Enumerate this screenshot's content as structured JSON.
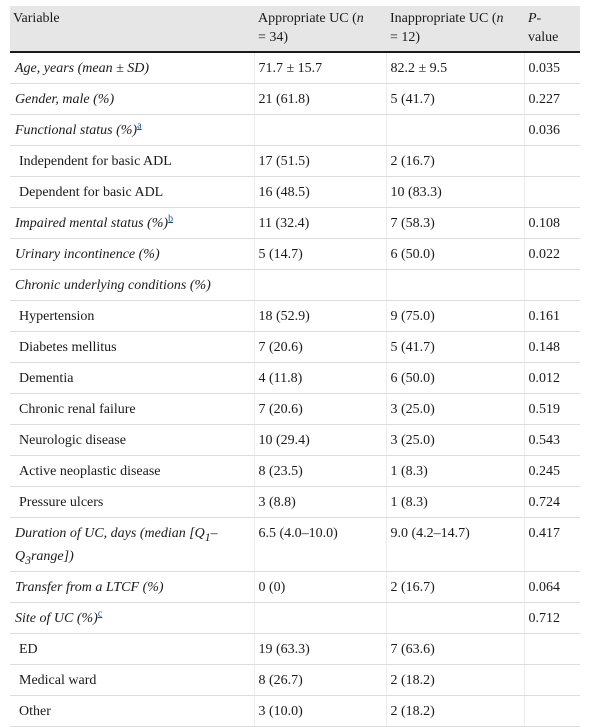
{
  "header": {
    "variable": "Variable",
    "appropriate": "Appropriate UC (",
    "appropriate_n": "n",
    "appropriate_tail": "= 34)",
    "inappropriate": "Inappropriate UC (",
    "inappropriate_n": "n",
    "inappropriate_tail": "= 12)",
    "p_line1": "P-",
    "p_line2": "value"
  },
  "rows": [
    {
      "label": "Age, years (mean ± SD)",
      "italic": true,
      "app": "71.7 ± 15.7",
      "inapp": "82.2 ± 9.5",
      "p": "0.035"
    },
    {
      "label": "Gender, male (%)",
      "italic": true,
      "app": "21 (61.8)",
      "inapp": "5 (41.7)",
      "p": "0.227"
    },
    {
      "label": "Functional status (%)",
      "italic": true,
      "fn": "a",
      "app": "",
      "inapp": "",
      "p": "0.036"
    },
    {
      "label": "Independent for basic ADL",
      "italic": false,
      "sub": true,
      "app": "17 (51.5)",
      "inapp": "2 (16.7)",
      "p": ""
    },
    {
      "label": "Dependent for basic ADL",
      "italic": false,
      "sub": true,
      "app": "16 (48.5)",
      "inapp": "10 (83.3)",
      "p": ""
    },
    {
      "label": "Impaired mental status (%)",
      "italic": true,
      "fn": "b",
      "app": "11 (32.4)",
      "inapp": "7 (58.3)",
      "p": "0.108"
    },
    {
      "label": "Urinary incontinence (%)",
      "italic": true,
      "app": "5 (14.7)",
      "inapp": "6 (50.0)",
      "p": "0.022"
    },
    {
      "label": "Chronic underlying conditions (%)",
      "italic": true,
      "app": "",
      "inapp": "",
      "p": ""
    },
    {
      "label": "Hypertension",
      "italic": false,
      "sub": true,
      "app": "18 (52.9)",
      "inapp": "9 (75.0)",
      "p": "0.161"
    },
    {
      "label": "Diabetes mellitus",
      "italic": false,
      "sub": true,
      "app": "7 (20.6)",
      "inapp": "5 (41.7)",
      "p": "0.148"
    },
    {
      "label": "Dementia",
      "italic": false,
      "sub": true,
      "app": "4 (11.8)",
      "inapp": "6 (50.0)",
      "p": "0.012"
    },
    {
      "label": "Chronic renal failure",
      "italic": false,
      "sub": true,
      "app": "7 (20.6)",
      "inapp": "3 (25.0)",
      "p": "0.519"
    },
    {
      "label": "Neurologic disease",
      "italic": false,
      "sub": true,
      "app": "10 (29.4)",
      "inapp": "3 (25.0)",
      "p": "0.543"
    },
    {
      "label": "Active neoplastic disease",
      "italic": false,
      "sub": true,
      "app": "8 (23.5)",
      "inapp": "1 (8.3)",
      "p": "0.245"
    },
    {
      "label": "Pressure ulcers",
      "italic": false,
      "sub": true,
      "app": "3 (8.8)",
      "inapp": "1 (8.3)",
      "p": "0.724"
    },
    {
      "special": "duration",
      "label_a": "Duration of UC, days (median [Q",
      "sub1": "1",
      "label_b": "–Q",
      "sub3": "3",
      "label_c": "range])",
      "app": "6.5 (4.0–10.0)",
      "inapp": "9.0 (4.2–14.7)",
      "p": "0.417"
    },
    {
      "label": "Transfer from a LTCF (%)",
      "italic": true,
      "app": "0 (0)",
      "inapp": "2 (16.7)",
      "p": "0.064"
    },
    {
      "label": "Site of UC (%)",
      "italic": true,
      "fn": "c",
      "app": "",
      "inapp": "",
      "p": "0.712"
    },
    {
      "label": "ED",
      "italic": false,
      "sub": true,
      "app": "19 (63.3)",
      "inapp": "7 (63.6)",
      "p": ""
    },
    {
      "label": "Medical ward",
      "italic": false,
      "sub": true,
      "app": "8 (26.7)",
      "inapp": "2 (18.2)",
      "p": ""
    },
    {
      "label": "Other",
      "italic": false,
      "sub": true,
      "app": "3 (10.0)",
      "inapp": "2 (18.2)",
      "p": ""
    }
  ]
}
